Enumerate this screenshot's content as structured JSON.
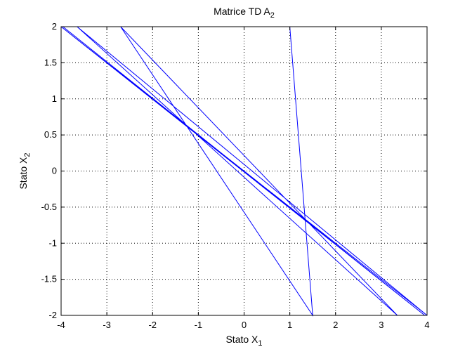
{
  "chart_data": {
    "type": "line",
    "title": {
      "main": "Matrice TD A",
      "sub": "2"
    },
    "xlabel": {
      "main": "Stato X",
      "sub": "1"
    },
    "ylabel": {
      "main": "Stato X",
      "sub": "2"
    },
    "xlim": [
      -4,
      4
    ],
    "ylim": [
      -2,
      2
    ],
    "xticks": [
      -4,
      -3,
      -2,
      -1,
      0,
      1,
      2,
      3,
      4
    ],
    "xtick_labels": [
      "-4",
      "-3",
      "-2",
      "-1",
      "0",
      "1",
      "2",
      "3",
      "4"
    ],
    "yticks": [
      -2,
      -1.5,
      -1,
      -0.5,
      0,
      0.5,
      1,
      1.5,
      2
    ],
    "ytick_labels": [
      "-2",
      "-1.5",
      "-1",
      "-0.5",
      "0",
      "0.5",
      "1",
      "1.5",
      "2"
    ],
    "grid": true,
    "grid_style": "dotted",
    "line_color": "#0000ff",
    "series": [
      {
        "x": [
          1.0,
          1.5,
          -2.7,
          3.35,
          -3.65,
          4.0,
          -4.0,
          3.95,
          -3.96,
          3.95,
          -3.96,
          3.95,
          -3.96,
          3.95,
          -3.96,
          3.95
        ],
        "y": [
          2.0,
          -2.0,
          2.0,
          -2.0,
          2.0,
          -2.0,
          2.0,
          -2.0,
          2.0,
          -2.0,
          2.0,
          -2.0,
          2.0,
          -2.0,
          2.0,
          -2.0
        ]
      }
    ]
  }
}
